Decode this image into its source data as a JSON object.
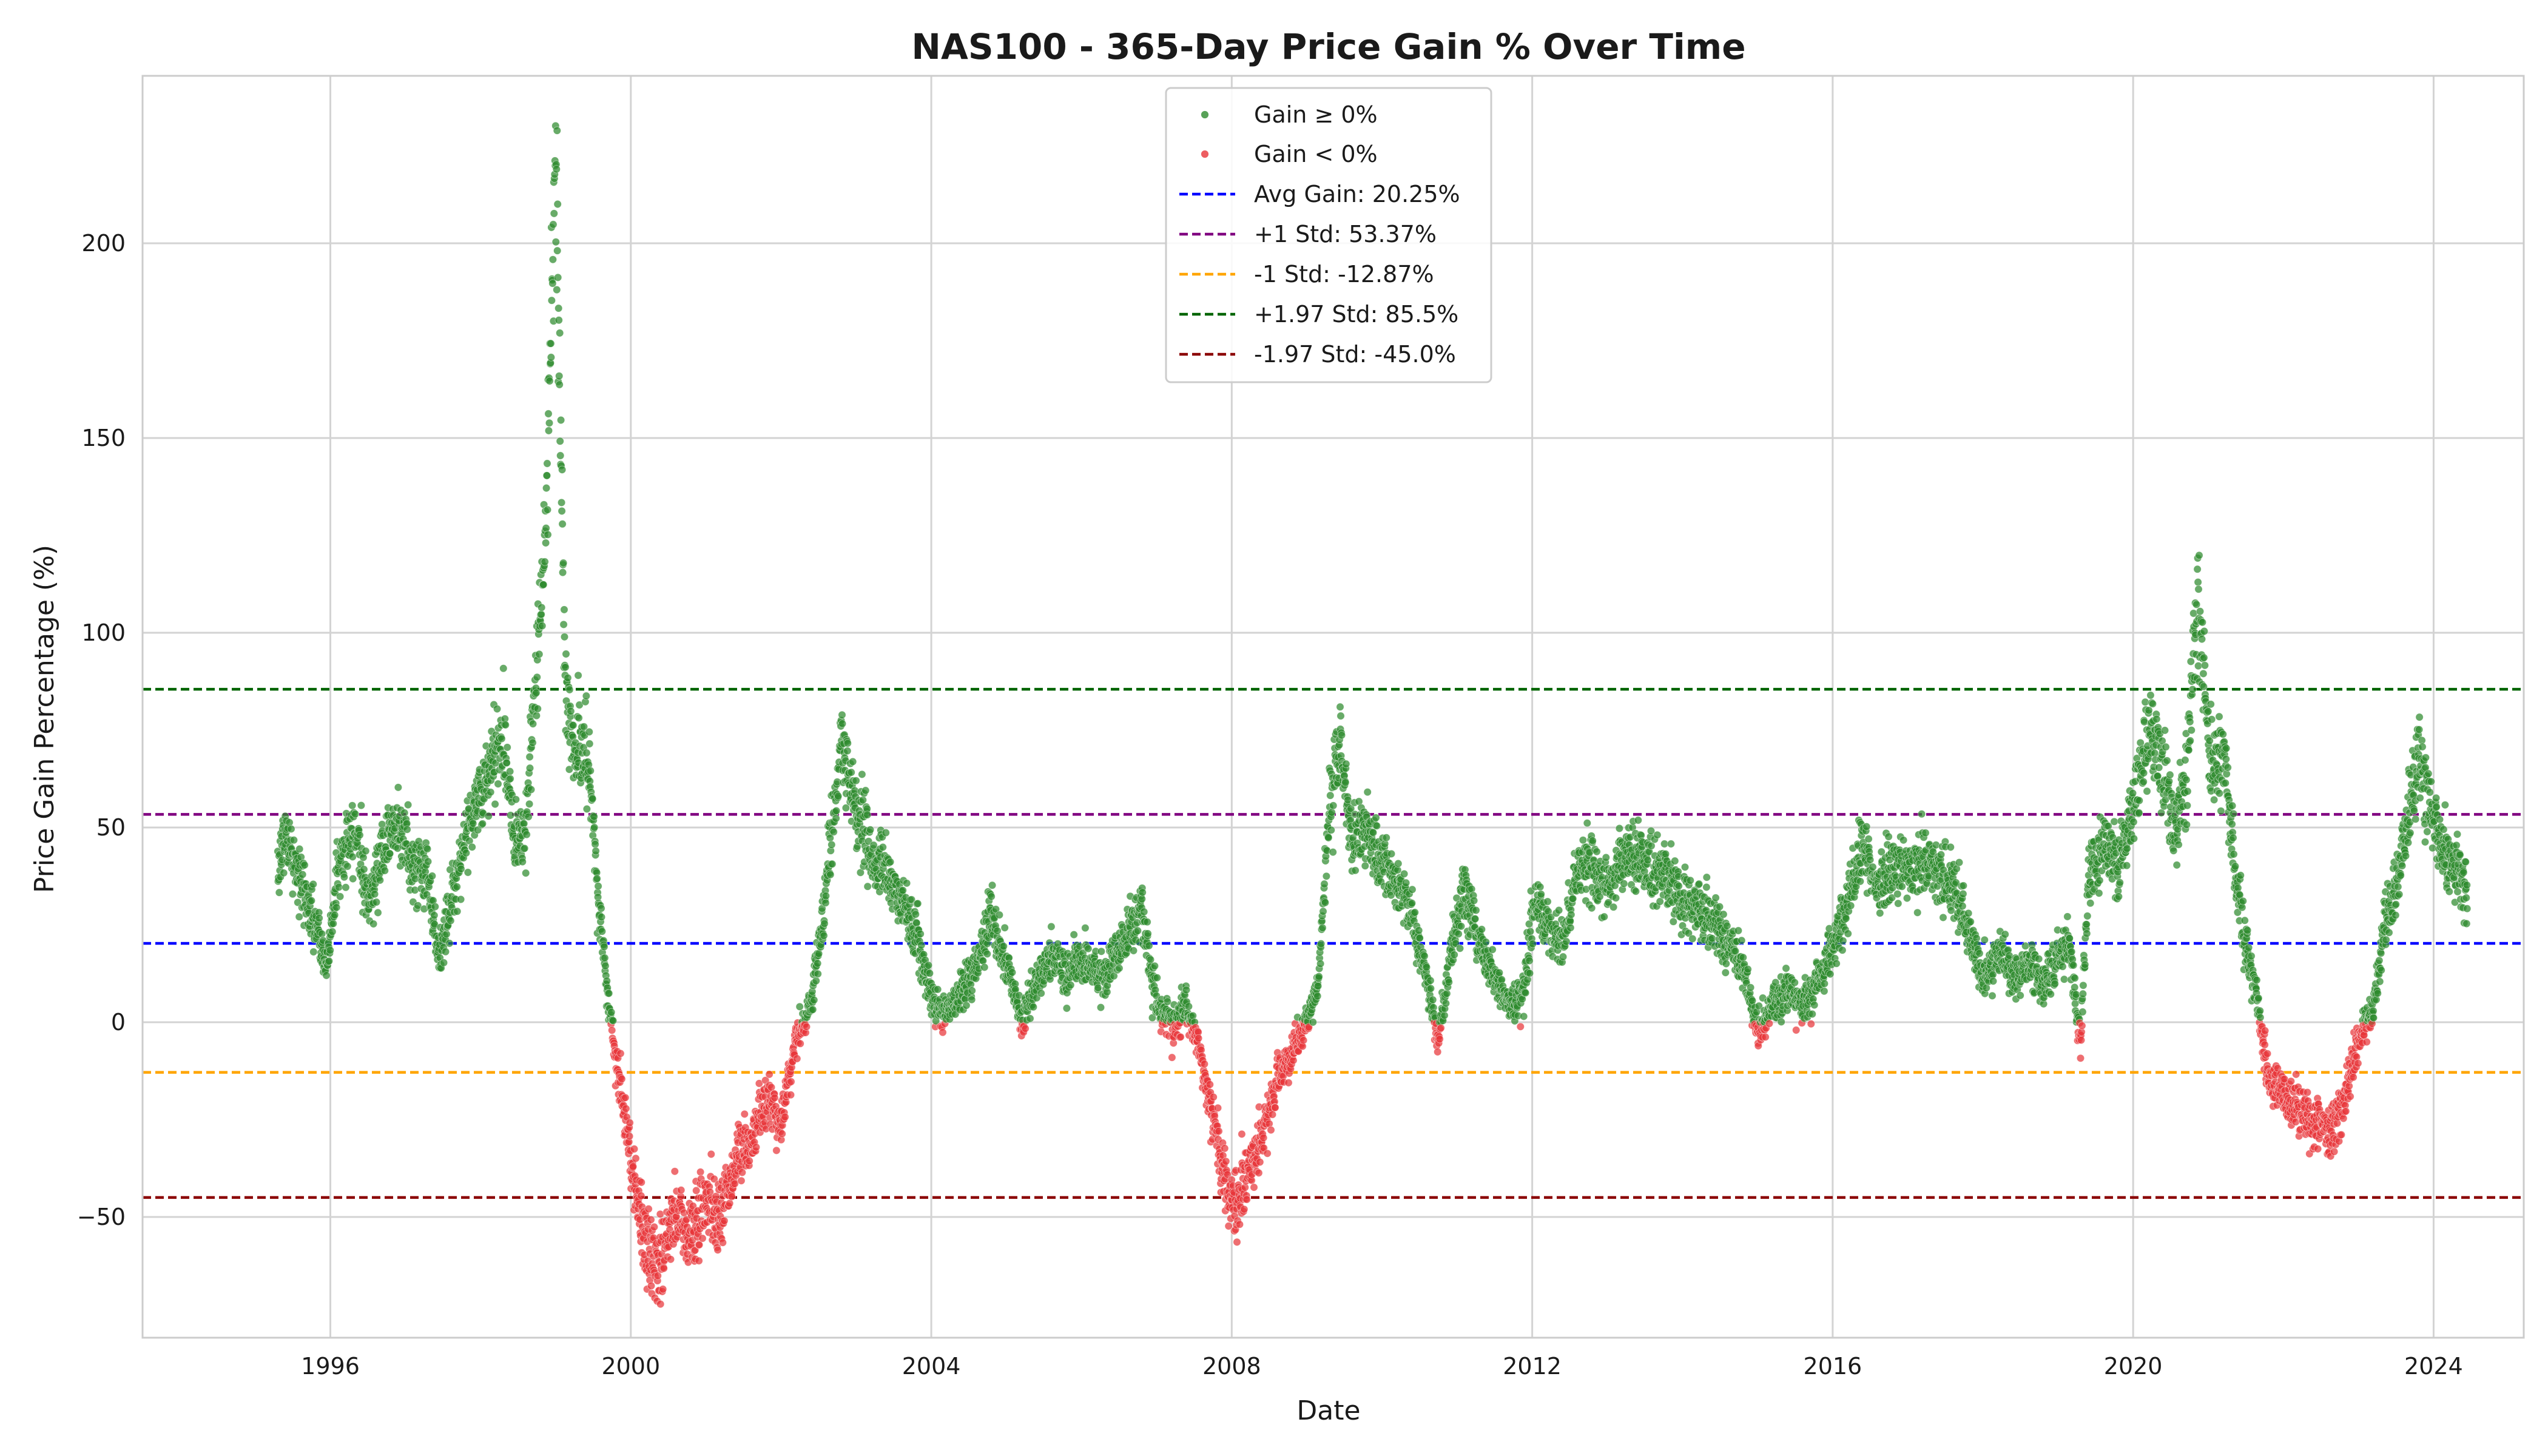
{
  "chart_data": {
    "type": "scatter",
    "title": "NAS100 - 365-Day Price Gain % Over Time",
    "xlabel": "Date",
    "ylabel": "Price Gain Percentage (%)",
    "xlim": [
      1993.5,
      2025.2
    ],
    "ylim": [
      -81,
      243
    ],
    "xticks": [
      1996,
      2000,
      2004,
      2008,
      2012,
      2016,
      2020,
      2024
    ],
    "yticks": [
      -50,
      0,
      50,
      100,
      150,
      200
    ],
    "ytick_labels": [
      "−50",
      "0",
      "50",
      "100",
      "150",
      "200"
    ],
    "grid": true,
    "legend_position": "top-center",
    "colors": {
      "positive": "#2e8b2e",
      "negative": "#e8363a",
      "avg": "#0000ff",
      "plus1": "#800080",
      "minus1": "#ffa500",
      "plus197": "#006400",
      "minus197": "#8b0000",
      "grid": "#d3d3d3",
      "spine": "#cccccc"
    },
    "series": [
      {
        "name": "Gain ≥ 0%",
        "kind": "scatter",
        "color_key": "positive"
      },
      {
        "name": "Gain < 0%",
        "kind": "scatter",
        "color_key": "negative"
      }
    ],
    "reference_lines": [
      {
        "name": "Avg Gain: 20.25%",
        "value": 20.25,
        "color_key": "avg"
      },
      {
        "name": "+1 Std: 53.37%",
        "value": 53.37,
        "color_key": "plus1"
      },
      {
        "name": "-1 Std: -12.87%",
        "value": -12.87,
        "color_key": "minus1"
      },
      {
        "name": "+1.97 Std: 85.5%",
        "value": 85.5,
        "color_key": "plus197"
      },
      {
        "name": "-1.97 Std: -45.0%",
        "value": -45.0,
        "color_key": "minus197"
      }
    ],
    "trajectory": [
      [
        1995.3,
        40
      ],
      [
        1995.4,
        48
      ],
      [
        1995.6,
        36
      ],
      [
        1995.8,
        25
      ],
      [
        1995.95,
        14
      ],
      [
        1996.1,
        40
      ],
      [
        1996.35,
        50
      ],
      [
        1996.5,
        30
      ],
      [
        1996.7,
        45
      ],
      [
        1996.9,
        52
      ],
      [
        1997.1,
        40
      ],
      [
        1997.3,
        38
      ],
      [
        1997.45,
        16
      ],
      [
        1997.7,
        40
      ],
      [
        1997.9,
        55
      ],
      [
        1998.1,
        62
      ],
      [
        1998.3,
        75
      ],
      [
        1998.45,
        48
      ],
      [
        1998.6,
        50
      ],
      [
        1998.75,
        90
      ],
      [
        1998.85,
        120
      ],
      [
        1998.95,
        190
      ],
      [
        1999.0,
        220
      ],
      [
        1999.07,
        150
      ],
      [
        1999.12,
        95
      ],
      [
        1999.2,
        70
      ],
      [
        1999.3,
        72
      ],
      [
        1999.45,
        65
      ],
      [
        1999.55,
        35
      ],
      [
        1999.7,
        5
      ],
      [
        1999.85,
        -15
      ],
      [
        2000.0,
        -35
      ],
      [
        2000.2,
        -58
      ],
      [
        2000.4,
        -63
      ],
      [
        2000.6,
        -48
      ],
      [
        2000.8,
        -55
      ],
      [
        2001.0,
        -45
      ],
      [
        2001.2,
        -50
      ],
      [
        2001.4,
        -35
      ],
      [
        2001.6,
        -30
      ],
      [
        2001.8,
        -20
      ],
      [
        2002.0,
        -25
      ],
      [
        2002.2,
        -5
      ],
      [
        2002.4,
        5
      ],
      [
        2002.6,
        35
      ],
      [
        2002.8,
        70
      ],
      [
        2003.0,
        55
      ],
      [
        2003.2,
        42
      ],
      [
        2003.4,
        38
      ],
      [
        2003.6,
        30
      ],
      [
        2003.8,
        25
      ],
      [
        2004.0,
        5
      ],
      [
        2004.2,
        2
      ],
      [
        2004.4,
        8
      ],
      [
        2004.6,
        15
      ],
      [
        2004.8,
        28
      ],
      [
        2005.0,
        15
      ],
      [
        2005.2,
        0
      ],
      [
        2005.4,
        10
      ],
      [
        2005.6,
        18
      ],
      [
        2005.8,
        12
      ],
      [
        2006.0,
        15
      ],
      [
        2006.3,
        12
      ],
      [
        2006.6,
        22
      ],
      [
        2006.8,
        30
      ],
      [
        2007.0,
        5
      ],
      [
        2007.2,
        0
      ],
      [
        2007.4,
        3
      ],
      [
        2007.6,
        -10
      ],
      [
        2007.8,
        -30
      ],
      [
        2008.0,
        -47
      ],
      [
        2008.2,
        -40
      ],
      [
        2008.4,
        -30
      ],
      [
        2008.6,
        -15
      ],
      [
        2008.8,
        -8
      ],
      [
        2009.0,
        0
      ],
      [
        2009.15,
        10
      ],
      [
        2009.3,
        55
      ],
      [
        2009.45,
        72
      ],
      [
        2009.6,
        45
      ],
      [
        2009.8,
        50
      ],
      [
        2010.0,
        40
      ],
      [
        2010.2,
        35
      ],
      [
        2010.4,
        28
      ],
      [
        2010.6,
        10
      ],
      [
        2010.75,
        -5
      ],
      [
        2010.9,
        15
      ],
      [
        2011.1,
        35
      ],
      [
        2011.3,
        20
      ],
      [
        2011.5,
        10
      ],
      [
        2011.7,
        5
      ],
      [
        2011.9,
        8
      ],
      [
        2012.0,
        30
      ],
      [
        2012.2,
        25
      ],
      [
        2012.4,
        20
      ],
      [
        2012.6,
        38
      ],
      [
        2012.8,
        40
      ],
      [
        2013.0,
        35
      ],
      [
        2013.2,
        42
      ],
      [
        2013.4,
        44
      ],
      [
        2013.6,
        38
      ],
      [
        2013.8,
        40
      ],
      [
        2014.0,
        30
      ],
      [
        2014.2,
        28
      ],
      [
        2014.4,
        25
      ],
      [
        2014.6,
        20
      ],
      [
        2014.8,
        15
      ],
      [
        2015.0,
        -2
      ],
      [
        2015.2,
        5
      ],
      [
        2015.4,
        8
      ],
      [
        2015.6,
        5
      ],
      [
        2015.8,
        10
      ],
      [
        2016.0,
        20
      ],
      [
        2016.2,
        30
      ],
      [
        2016.4,
        45
      ],
      [
        2016.6,
        35
      ],
      [
        2016.8,
        40
      ],
      [
        2017.0,
        38
      ],
      [
        2017.2,
        42
      ],
      [
        2017.4,
        38
      ],
      [
        2017.6,
        36
      ],
      [
        2017.8,
        25
      ],
      [
        2018.0,
        10
      ],
      [
        2018.2,
        18
      ],
      [
        2018.4,
        12
      ],
      [
        2018.6,
        15
      ],
      [
        2018.8,
        10
      ],
      [
        2019.0,
        15
      ],
      [
        2019.15,
        20
      ],
      [
        2019.3,
        -5
      ],
      [
        2019.4,
        35
      ],
      [
        2019.6,
        45
      ],
      [
        2019.8,
        40
      ],
      [
        2020.0,
        55
      ],
      [
        2020.2,
        75
      ],
      [
        2020.4,
        65
      ],
      [
        2020.55,
        50
      ],
      [
        2020.7,
        60
      ],
      [
        2020.85,
        110
      ],
      [
        2020.95,
        90
      ],
      [
        2021.05,
        65
      ],
      [
        2021.2,
        70
      ],
      [
        2021.35,
        40
      ],
      [
        2021.5,
        20
      ],
      [
        2021.65,
        5
      ],
      [
        2021.8,
        -15
      ],
      [
        2022.0,
        -18
      ],
      [
        2022.2,
        -22
      ],
      [
        2022.4,
        -25
      ],
      [
        2022.6,
        -28
      ],
      [
        2022.8,
        -20
      ],
      [
        2023.0,
        -5
      ],
      [
        2023.2,
        5
      ],
      [
        2023.35,
        25
      ],
      [
        2023.5,
        35
      ],
      [
        2023.65,
        50
      ],
      [
        2023.8,
        70
      ],
      [
        2023.95,
        55
      ],
      [
        2024.1,
        45
      ],
      [
        2024.3,
        40
      ],
      [
        2024.45,
        35
      ]
    ]
  }
}
